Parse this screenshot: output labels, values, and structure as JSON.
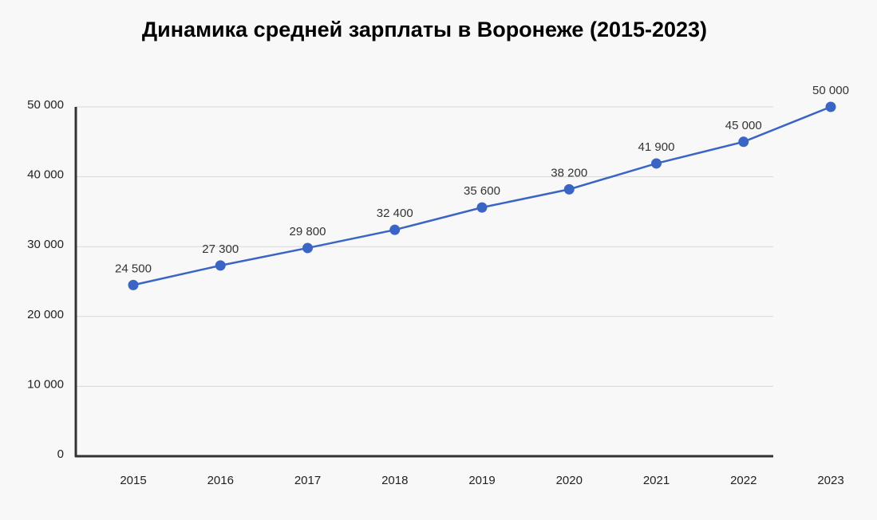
{
  "chart_data": {
    "type": "line",
    "title": "Динамика средней зарплаты в Воронеже (2015-2023)",
    "categories": [
      "2015",
      "2016",
      "2017",
      "2018",
      "2019",
      "2020",
      "2021",
      "2022",
      "2023"
    ],
    "series": [
      {
        "color": "#3b65c4",
        "values": [
          24500,
          27300,
          29800,
          32400,
          35600,
          38200,
          41900,
          45000,
          50000
        ],
        "value_labels": [
          "24 500",
          "27 300",
          "29 800",
          "32 400",
          "35 600",
          "38 200",
          "41 900",
          "45 000",
          "50 000"
        ]
      }
    ],
    "ylim": [
      0,
      50000
    ],
    "yticks": [
      0,
      {
        "value": 10000,
        "label": "10 000"
      },
      {
        "value": 20000,
        "label": "20 000"
      },
      {
        "value": 30000,
        "label": "30 000"
      },
      {
        "value": 40000,
        "label": "40 000"
      },
      {
        "value": 50000,
        "label": "50 000"
      }
    ],
    "grid": true
  }
}
